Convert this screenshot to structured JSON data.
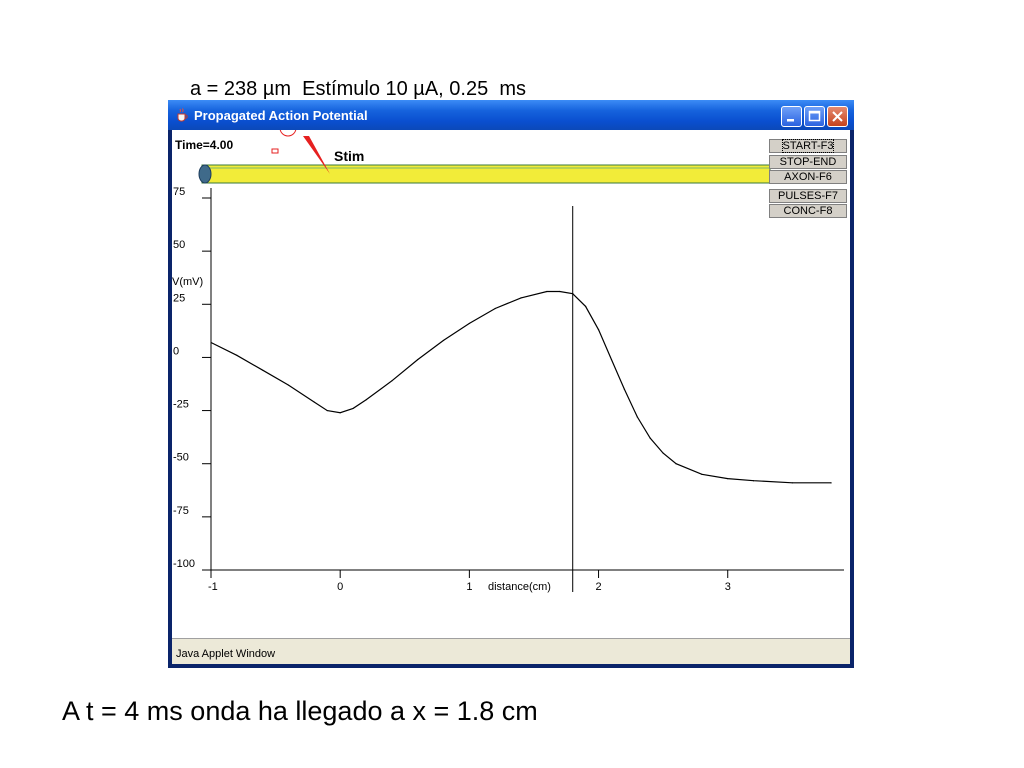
{
  "slide": {
    "top_caption": "a = 238 µm  Estímulo 10 µA, 0.25  ms",
    "bottom_caption": "A t = 4 ms onda ha llegado a x = 1.8 cm"
  },
  "window": {
    "title": "Propagated Action Potential",
    "icon": "java-cup-icon",
    "controls": [
      "minimize-icon",
      "maximize-icon",
      "close-icon"
    ],
    "status_text": "Java Applet Window"
  },
  "applet": {
    "time_label": "Time=4.00",
    "stim_label": "Stim",
    "buttons": [
      {
        "label": "START-F3",
        "focused": true
      },
      {
        "label": "STOP-END"
      },
      {
        "label": "AXON-F6"
      },
      {
        "label": "PULSES-F7"
      },
      {
        "label": "CONC-F8"
      }
    ],
    "axon_color": "#f2ec39",
    "marker_color": "#e62020"
  },
  "chart_data": {
    "type": "line",
    "ylabel": "V(mV)",
    "xlabel": "distance(cm)",
    "yticks": [
      "75",
      "50",
      "25",
      "0",
      "-25",
      "-50",
      "-75",
      "-100"
    ],
    "ytick_values": [
      75,
      50,
      25,
      0,
      -25,
      -50,
      -75,
      -100
    ],
    "xticks": [
      "-1",
      "0",
      "1",
      "2",
      "3"
    ],
    "xtick_values": [
      -1,
      0,
      1,
      2,
      3
    ],
    "xlim": [
      -1,
      3.9
    ],
    "ylim": [
      -100,
      75
    ],
    "cursor_x": 1.8,
    "series": [
      {
        "x": [
          -1,
          -0.8,
          -0.6,
          -0.4,
          -0.2,
          -0.1,
          0,
          0.1,
          0.2,
          0.4,
          0.6,
          0.8,
          1.0,
          1.2,
          1.4,
          1.6,
          1.7,
          1.8,
          1.9,
          2.0,
          2.1,
          2.2,
          2.3,
          2.4,
          2.5,
          2.6,
          2.8,
          3.0,
          3.2,
          3.5,
          3.8
        ],
        "y": [
          7,
          1,
          -6,
          -13,
          -21,
          -25,
          -26,
          -24,
          -20,
          -11,
          -1,
          8,
          16,
          23,
          28,
          31,
          31,
          30,
          24,
          13,
          -1,
          -15,
          -28,
          -38,
          -45,
          -50,
          -55,
          -57,
          -58,
          -59,
          -59
        ]
      }
    ]
  }
}
